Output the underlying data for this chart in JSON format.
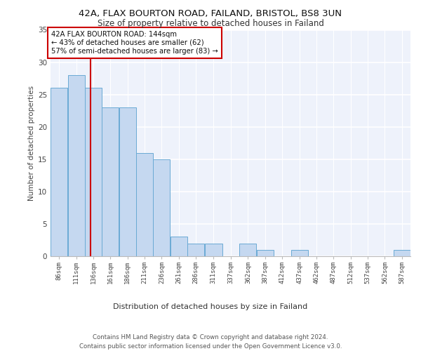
{
  "title_line1": "42A, FLAX BOURTON ROAD, FAILAND, BRISTOL, BS8 3UN",
  "title_line2": "Size of property relative to detached houses in Failand",
  "xlabel": "Distribution of detached houses by size in Failand",
  "ylabel": "Number of detached properties",
  "bin_labels": [
    "86sqm",
    "111sqm",
    "136sqm",
    "161sqm",
    "186sqm",
    "211sqm",
    "236sqm",
    "261sqm",
    "286sqm",
    "311sqm",
    "337sqm",
    "362sqm",
    "387sqm",
    "412sqm",
    "437sqm",
    "462sqm",
    "487sqm",
    "512sqm",
    "537sqm",
    "562sqm",
    "587sqm"
  ],
  "bar_values": [
    26,
    28,
    26,
    23,
    23,
    16,
    15,
    3,
    2,
    2,
    0,
    2,
    1,
    0,
    1,
    0,
    0,
    0,
    0,
    0,
    1
  ],
  "bar_color": "#c5d8f0",
  "bar_edgecolor": "#6aaad4",
  "background_color": "#eef2fb",
  "grid_color": "#ffffff",
  "annotation_text": "42A FLAX BOURTON ROAD: 144sqm\n← 43% of detached houses are smaller (62)\n57% of semi-detached houses are larger (83) →",
  "annotation_box_edgecolor": "#cc0000",
  "vline_x": 144,
  "vline_color": "#cc0000",
  "ylim": [
    0,
    35
  ],
  "yticks": [
    0,
    5,
    10,
    15,
    20,
    25,
    30,
    35
  ],
  "bin_edges_sqm": [
    86,
    111,
    136,
    161,
    186,
    211,
    236,
    261,
    286,
    311,
    337,
    362,
    387,
    412,
    437,
    462,
    487,
    512,
    537,
    562,
    587,
    612
  ],
  "footer_line1": "Contains HM Land Registry data © Crown copyright and database right 2024.",
  "footer_line2": "Contains public sector information licensed under the Open Government Licence v3.0."
}
